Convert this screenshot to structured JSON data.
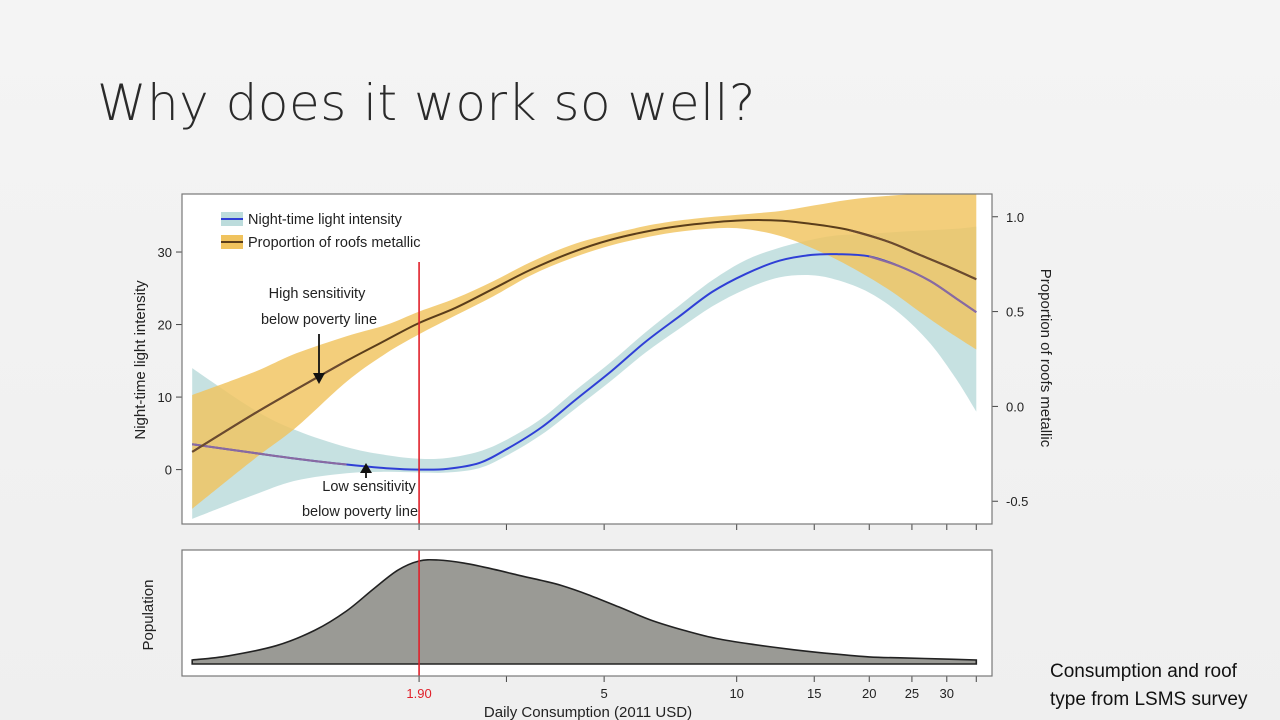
{
  "slide": {
    "title": "Why does it work so well?",
    "caption_line1": "Consumption and roof",
    "caption_line2": "type from LSMS survey"
  },
  "chart_data": [
    {
      "type": "line",
      "name": "main",
      "xlabel": "Daily Consumption (2011 USD)",
      "x_scale": "log",
      "xlim": [
        0.55,
        38
      ],
      "x_ticks": [
        {
          "value": 1.9,
          "label": "1.90",
          "color": "#e0202a"
        },
        {
          "value": 5,
          "label": "5"
        },
        {
          "value": 10,
          "label": "10"
        },
        {
          "value": 15,
          "label": "15"
        },
        {
          "value": 20,
          "label": "20"
        },
        {
          "value": 25,
          "label": "25"
        },
        {
          "value": 30,
          "label": "30"
        }
      ],
      "x_minor_ticks": [
        3,
        35
      ],
      "ylabel_left": "Night-time light intensity",
      "ylim_left": [
        -7.5,
        38
      ],
      "yticks_left": [
        0,
        10,
        20,
        30
      ],
      "ylabel_right": "Proportion of roofs metallic",
      "ylim_right": [
        -0.62,
        1.12
      ],
      "yticks_right": [
        {
          "value": -0.5,
          "label": "-0.5"
        },
        {
          "value": 0.0,
          "label": "0.0"
        },
        {
          "value": 0.5,
          "label": "0.5"
        },
        {
          "value": 1.0,
          "label": "1.0"
        }
      ],
      "poverty_line": {
        "x": 1.9,
        "color": "#e0202a"
      },
      "legend": {
        "position": "top-left",
        "items": [
          {
            "label": "Night-time light intensity",
            "line_color": "#2f3fd6",
            "fill_color": "#bcdcdc"
          },
          {
            "label": "Proportion of roofs metallic",
            "line_color": "#5a3d1a",
            "fill_color": "#f0c35e"
          }
        ]
      },
      "annotations": [
        {
          "line1": "High sensitivity",
          "line2": "below poverty line"
        },
        {
          "line1": "Low sensitivity",
          "line2": "below poverty line"
        }
      ],
      "series": [
        {
          "name": "Night-time light intensity",
          "axis": "left",
          "line_color": "#2f3fd6",
          "tail_color": "#8a6aa0",
          "band_color": "#bcdcdc",
          "x": [
            0.58,
            0.8,
            1.0,
            1.3,
            1.6,
            1.9,
            2.2,
            2.6,
            3.0,
            3.6,
            4.3,
            5.2,
            6.2,
            7.4,
            8.8,
            10.5,
            12.5,
            14.8,
            17.0,
            20.0,
            23.5,
            27.5,
            31.5,
            35.0
          ],
          "y": [
            3.5,
            2.3,
            1.5,
            0.7,
            0.2,
            0.0,
            0.1,
            0.9,
            2.8,
            5.8,
            9.6,
            13.6,
            17.6,
            21.1,
            24.5,
            27.0,
            28.8,
            29.6,
            29.7,
            29.4,
            28.0,
            26.0,
            23.6,
            21.7
          ],
          "lower": [
            -6.8,
            -3.5,
            -1.5,
            -0.5,
            -0.3,
            -0.4,
            -0.4,
            0.2,
            1.9,
            4.8,
            8.4,
            12.3,
            16.1,
            19.4,
            22.5,
            24.9,
            26.5,
            26.8,
            26.1,
            24.4,
            21.5,
            17.4,
            12.5,
            8.0
          ],
          "upper": [
            14.0,
            8.3,
            5.4,
            3.1,
            2.0,
            1.5,
            1.6,
            2.5,
            4.1,
            7.0,
            10.9,
            14.9,
            18.9,
            22.6,
            26.1,
            28.9,
            30.6,
            31.7,
            32.3,
            32.5,
            32.8,
            33.0,
            33.2,
            33.5
          ]
        },
        {
          "name": "Proportion of roofs metallic",
          "axis": "right",
          "line_color": "#5a3d1a",
          "tail_color": "#6a4a30",
          "band_color": "#f0c35e",
          "x": [
            0.58,
            0.8,
            1.0,
            1.3,
            1.6,
            1.9,
            2.3,
            2.8,
            3.4,
            4.2,
            5.2,
            6.5,
            8.0,
            10.0,
            12.5,
            15.0,
            18.0,
            22.0,
            26.0,
            30.0,
            35.0
          ],
          "y": [
            -0.24,
            -0.04,
            0.09,
            0.24,
            0.35,
            0.44,
            0.52,
            0.62,
            0.72,
            0.81,
            0.88,
            0.93,
            0.96,
            0.98,
            0.98,
            0.96,
            0.93,
            0.87,
            0.8,
            0.74,
            0.67
          ],
          "lower": [
            -0.54,
            -0.28,
            -0.11,
            0.13,
            0.28,
            0.38,
            0.48,
            0.58,
            0.69,
            0.78,
            0.85,
            0.9,
            0.93,
            0.94,
            0.9,
            0.83,
            0.74,
            0.62,
            0.5,
            0.4,
            0.3
          ],
          "upper": [
            0.06,
            0.18,
            0.28,
            0.37,
            0.43,
            0.5,
            0.57,
            0.66,
            0.76,
            0.85,
            0.91,
            0.96,
            0.99,
            1.01,
            1.03,
            1.06,
            1.09,
            1.11,
            1.12,
            1.12,
            1.12
          ]
        }
      ]
    },
    {
      "type": "area",
      "name": "population",
      "ylabel": "Population",
      "fill_color": "#9a9a95",
      "x": [
        0.58,
        0.7,
        0.9,
        1.1,
        1.3,
        1.5,
        1.7,
        1.9,
        2.1,
        2.4,
        2.8,
        3.2,
        3.6,
        4.0,
        4.6,
        5.4,
        6.4,
        7.6,
        9.0,
        11.0,
        13.5,
        16.5,
        20.0,
        24.0,
        29.0,
        35.0
      ],
      "y": [
        0.02,
        0.06,
        0.16,
        0.31,
        0.5,
        0.72,
        0.9,
        0.99,
        1.0,
        0.97,
        0.91,
        0.85,
        0.8,
        0.75,
        0.66,
        0.54,
        0.41,
        0.31,
        0.23,
        0.17,
        0.12,
        0.08,
        0.05,
        0.04,
        0.03,
        0.02
      ]
    }
  ]
}
